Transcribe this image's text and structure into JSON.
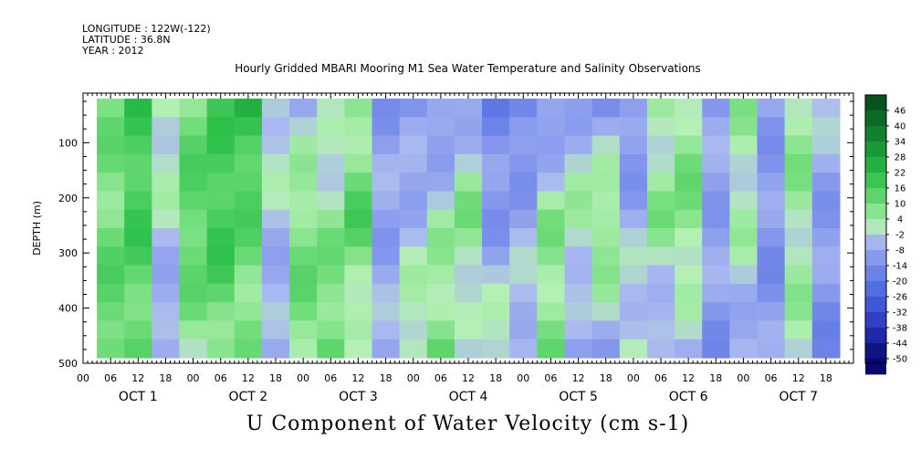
{
  "header": {
    "longitude": "LONGITUDE : 122W(-122)",
    "latitude": "LATITUDE : 36.8N",
    "year": "YEAR : 2012",
    "title": "Hourly Gridded MBARI Mooring M1 Sea Water Temperature and Salinity Observations"
  },
  "footer": {
    "variable_title": "U Component of Water Velocity (cm s-1)"
  },
  "chart_data": {
    "type": "heatmap",
    "title": "Hourly Gridded MBARI Mooring M1 Sea Water Temperature and Salinity Observations",
    "xlabel": "",
    "ylabel": "DEPTH (m)",
    "ylim": [
      500,
      10
    ],
    "y_reversed": true,
    "y_ticks": [
      100,
      200,
      300,
      400,
      500
    ],
    "x_hour_ticks": [
      "00",
      "06",
      "12",
      "18",
      "00",
      "06",
      "12",
      "18",
      "00",
      "06",
      "12",
      "18",
      "00",
      "06",
      "12",
      "18",
      "00",
      "06",
      "12",
      "18",
      "00",
      "06",
      "12",
      "18",
      "00",
      "06",
      "12",
      "18"
    ],
    "day_labels": [
      "OCT 1",
      "OCT 2",
      "OCT 3",
      "OCT 4",
      "OCT 5",
      "OCT 6",
      "OCT 7"
    ],
    "x_range_hours": [
      0,
      168
    ],
    "data_x_range_hours": [
      6,
      165
    ],
    "data_depth_range": [
      20,
      490
    ],
    "colorbar": {
      "levels": [
        46,
        40,
        34,
        28,
        22,
        16,
        10,
        4,
        -2,
        -8,
        -14,
        -20,
        -26,
        -32,
        -38,
        -44,
        -50
      ],
      "units": "cm s-1"
    },
    "profile_columns": [
      {
        "hour": 6,
        "u_shallow": 8,
        "u_mid": 10,
        "u_deep": 14
      },
      {
        "hour": 12,
        "u_shallow": 18,
        "u_mid": 16,
        "u_deep": 10
      },
      {
        "hour": 18,
        "u_shallow": 4,
        "u_mid": -2,
        "u_deep": -10
      },
      {
        "hour": 24,
        "u_shallow": 10,
        "u_mid": 14,
        "u_deep": 4
      },
      {
        "hour": 30,
        "u_shallow": 16,
        "u_mid": 18,
        "u_deep": 8
      },
      {
        "hour": 36,
        "u_shallow": 22,
        "u_mid": 12,
        "u_deep": 6
      },
      {
        "hour": 42,
        "u_shallow": 2,
        "u_mid": -4,
        "u_deep": -8
      },
      {
        "hour": 48,
        "u_shallow": -6,
        "u_mid": 10,
        "u_deep": 8
      },
      {
        "hour": 54,
        "u_shallow": -4,
        "u_mid": 6,
        "u_deep": 12
      },
      {
        "hour": 60,
        "u_shallow": 4,
        "u_mid": 14,
        "u_deep": -4
      },
      {
        "hour": 66,
        "u_shallow": -10,
        "u_mid": -8,
        "u_deep": -6
      },
      {
        "hour": 72,
        "u_shallow": -12,
        "u_mid": -4,
        "u_deep": 6
      },
      {
        "hour": 78,
        "u_shallow": -14,
        "u_mid": 2,
        "u_deep": 10
      },
      {
        "hour": 84,
        "u_shallow": -8,
        "u_mid": 8,
        "u_deep": -6
      },
      {
        "hour": 90,
        "u_shallow": -16,
        "u_mid": -10,
        "u_deep": 4
      },
      {
        "hour": 96,
        "u_shallow": -18,
        "u_mid": -6,
        "u_deep": -2
      },
      {
        "hour": 102,
        "u_shallow": -14,
        "u_mid": 6,
        "u_deep": 8
      },
      {
        "hour": 108,
        "u_shallow": -8,
        "u_mid": 4,
        "u_deep": -12
      },
      {
        "hour": 114,
        "u_shallow": -12,
        "u_mid": 10,
        "u_deep": -8
      },
      {
        "hour": 120,
        "u_shallow": -14,
        "u_mid": -6,
        "u_deep": 2
      },
      {
        "hour": 126,
        "u_shallow": 2,
        "u_mid": 6,
        "u_deep": -10
      },
      {
        "hour": 132,
        "u_shallow": 6,
        "u_mid": 8,
        "u_deep": -6
      },
      {
        "hour": 138,
        "u_shallow": -10,
        "u_mid": -8,
        "u_deep": -12
      },
      {
        "hour": 144,
        "u_shallow": 4,
        "u_mid": 2,
        "u_deep": -8
      },
      {
        "hour": 150,
        "u_shallow": -8,
        "u_mid": -12,
        "u_deep": -10
      },
      {
        "hour": 156,
        "u_shallow": 6,
        "u_mid": 4,
        "u_deep": 2
      },
      {
        "hour": 162,
        "u_shallow": -4,
        "u_mid": -10,
        "u_deep": -14
      }
    ]
  }
}
